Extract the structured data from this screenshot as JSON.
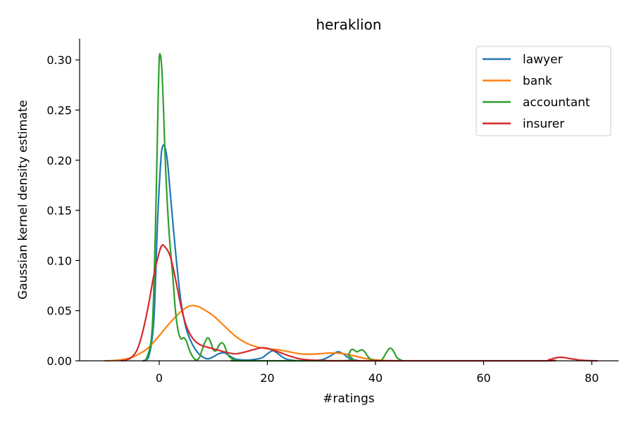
{
  "chart_data": {
    "type": "line",
    "title": "heraklion",
    "xlabel": "#ratings",
    "ylabel": "Gaussian kernel density estimate",
    "xlim": [
      -15,
      85
    ],
    "ylim": [
      0,
      0.32
    ],
    "xticks": [
      0,
      20,
      40,
      60,
      80
    ],
    "yticks": [
      0.0,
      0.05,
      0.1,
      0.15,
      0.2,
      0.25,
      0.3
    ],
    "xtick_labels": [
      "0",
      "20",
      "40",
      "60",
      "80"
    ],
    "ytick_labels": [
      "0.00",
      "0.05",
      "0.10",
      "0.15",
      "0.20",
      "0.25",
      "0.30"
    ],
    "grid": false,
    "legend_position": "top-right",
    "series": [
      {
        "name": "lawyer",
        "color": "#1f77b4",
        "points": [
          [
            -3,
            0
          ],
          [
            -2,
            0.003
          ],
          [
            -1,
            0.04
          ],
          [
            -0.3,
            0.14
          ],
          [
            0.3,
            0.2
          ],
          [
            0.6,
            0.213
          ],
          [
            1,
            0.214
          ],
          [
            1.5,
            0.2
          ],
          [
            2,
            0.17
          ],
          [
            3,
            0.11
          ],
          [
            4,
            0.06
          ],
          [
            5,
            0.032
          ],
          [
            6,
            0.018
          ],
          [
            7,
            0.009
          ],
          [
            8,
            0.004
          ],
          [
            9,
            0.002
          ],
          [
            10,
            0.004
          ],
          [
            11,
            0.007
          ],
          [
            12,
            0.008
          ],
          [
            13,
            0.005
          ],
          [
            14,
            0.002
          ],
          [
            15,
            0.001
          ],
          [
            17,
            0.001
          ],
          [
            19,
            0.003
          ],
          [
            20,
            0.007
          ],
          [
            21,
            0.01
          ],
          [
            22,
            0.007
          ],
          [
            23,
            0.003
          ],
          [
            24,
            0.001
          ],
          [
            26,
            0
          ],
          [
            30,
            0.001
          ],
          [
            32,
            0.006
          ],
          [
            33,
            0.009
          ],
          [
            34,
            0.007
          ],
          [
            35,
            0.003
          ],
          [
            36,
            0.001
          ],
          [
            37,
            0
          ]
        ]
      },
      {
        "name": "bank",
        "color": "#ff7f0e",
        "points": [
          [
            -10,
            0
          ],
          [
            -8,
            0.0005
          ],
          [
            -6,
            0.002
          ],
          [
            -4,
            0.006
          ],
          [
            -2,
            0.013
          ],
          [
            0,
            0.025
          ],
          [
            2,
            0.038
          ],
          [
            4,
            0.049
          ],
          [
            5,
            0.053
          ],
          [
            6,
            0.055
          ],
          [
            7,
            0.0545
          ],
          [
            8,
            0.052
          ],
          [
            10,
            0.045
          ],
          [
            12,
            0.035
          ],
          [
            14,
            0.025
          ],
          [
            16,
            0.018
          ],
          [
            18,
            0.014
          ],
          [
            20,
            0.012
          ],
          [
            22,
            0.011
          ],
          [
            24,
            0.009
          ],
          [
            26,
            0.007
          ],
          [
            28,
            0.0065
          ],
          [
            30,
            0.0072
          ],
          [
            32,
            0.0078
          ],
          [
            34,
            0.0072
          ],
          [
            36,
            0.005
          ],
          [
            38,
            0.0025
          ],
          [
            40,
            0.001
          ],
          [
            42,
            0.0002
          ],
          [
            44,
            0
          ]
        ]
      },
      {
        "name": "accountant",
        "color": "#2ca02c",
        "points": [
          [
            -2.5,
            0
          ],
          [
            -1.5,
            0.02
          ],
          [
            -1,
            0.07
          ],
          [
            -0.5,
            0.18
          ],
          [
            -0.2,
            0.26
          ],
          [
            0,
            0.3
          ],
          [
            0.2,
            0.305
          ],
          [
            0.5,
            0.29
          ],
          [
            0.8,
            0.25
          ],
          [
            1.2,
            0.19
          ],
          [
            1.8,
            0.13
          ],
          [
            2.5,
            0.085
          ],
          [
            3,
            0.05
          ],
          [
            3.5,
            0.03
          ],
          [
            4,
            0.022
          ],
          [
            4.5,
            0.023
          ],
          [
            5,
            0.02
          ],
          [
            5.5,
            0.012
          ],
          [
            6,
            0.006
          ],
          [
            6.5,
            0.002
          ],
          [
            7,
            0.001
          ],
          [
            7.5,
            0.004
          ],
          [
            8,
            0.012
          ],
          [
            8.5,
            0.019
          ],
          [
            9,
            0.023
          ],
          [
            9.5,
            0.019
          ],
          [
            10,
            0.011
          ],
          [
            10.5,
            0.01
          ],
          [
            11,
            0.015
          ],
          [
            11.5,
            0.018
          ],
          [
            12,
            0.016
          ],
          [
            12.5,
            0.009
          ],
          [
            13,
            0.004
          ],
          [
            14,
            0.001
          ],
          [
            15,
            0
          ],
          [
            34,
            0
          ],
          [
            35,
            0.006
          ],
          [
            35.5,
            0.011
          ],
          [
            36,
            0.011
          ],
          [
            36.5,
            0.009
          ],
          [
            37,
            0.01
          ],
          [
            37.5,
            0.011
          ],
          [
            38,
            0.009
          ],
          [
            38.5,
            0.005
          ],
          [
            39,
            0.002
          ],
          [
            40,
            0
          ],
          [
            41,
            0
          ],
          [
            42,
            0.008
          ],
          [
            42.5,
            0.012
          ],
          [
            43,
            0.012
          ],
          [
            43.5,
            0.008
          ],
          [
            44,
            0.003
          ],
          [
            45,
            0
          ]
        ]
      },
      {
        "name": "insurer",
        "color": "#d62728",
        "points": [
          [
            -7,
            0
          ],
          [
            -6,
            0.001
          ],
          [
            -5,
            0.004
          ],
          [
            -4,
            0.012
          ],
          [
            -3,
            0.03
          ],
          [
            -2,
            0.055
          ],
          [
            -1,
            0.085
          ],
          [
            0,
            0.108
          ],
          [
            0.5,
            0.115
          ],
          [
            1,
            0.114
          ],
          [
            2,
            0.105
          ],
          [
            3,
            0.082
          ],
          [
            4,
            0.055
          ],
          [
            5,
            0.035
          ],
          [
            6,
            0.024
          ],
          [
            7,
            0.018
          ],
          [
            8,
            0.015
          ],
          [
            10,
            0.012
          ],
          [
            12,
            0.009
          ],
          [
            14,
            0.007
          ],
          [
            16,
            0.009
          ],
          [
            18,
            0.012
          ],
          [
            19,
            0.013
          ],
          [
            20,
            0.0125
          ],
          [
            22,
            0.009
          ],
          [
            24,
            0.005
          ],
          [
            26,
            0.002
          ],
          [
            28,
            0.0008
          ],
          [
            30,
            0.0003
          ],
          [
            32,
            0.0001
          ],
          [
            34,
            0
          ],
          [
            70,
            0
          ],
          [
            72,
            0.001
          ],
          [
            73,
            0.0025
          ],
          [
            74,
            0.0035
          ],
          [
            75,
            0.0032
          ],
          [
            76,
            0.0022
          ],
          [
            78,
            0.0006
          ],
          [
            80,
            0.0001
          ],
          [
            81,
            0
          ]
        ]
      }
    ]
  }
}
